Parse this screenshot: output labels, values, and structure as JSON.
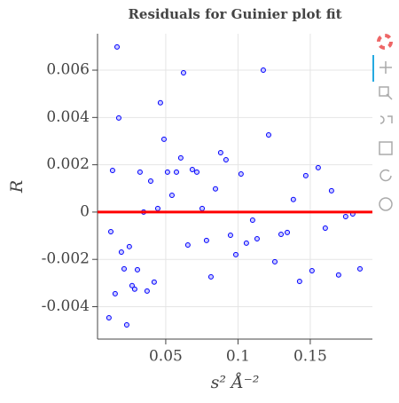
{
  "chart_data": {
    "type": "scatter",
    "title": "Residuals for Guinier plot fit",
    "x_label": "s² Å⁻²",
    "y_label": "R",
    "xlim": [
      0.0028,
      0.193
    ],
    "ylim": [
      -0.00537,
      0.00754
    ],
    "xticks": [
      0.05,
      0.1,
      0.15
    ],
    "yticks": [
      -0.004,
      -0.002,
      0,
      0.002,
      0.004,
      0.006
    ],
    "grid": true,
    "point_color": "#0000ff",
    "reference_line": 0,
    "reference_color": "#ff0000",
    "series": [
      {
        "name": "residuals",
        "x": [
          0.0163,
          0.0175,
          0.0132,
          0.012,
          0.0193,
          0.015,
          0.0107,
          0.0212,
          0.0248,
          0.023,
          0.0267,
          0.0285,
          0.0304,
          0.0322,
          0.0347,
          0.0371,
          0.0396,
          0.042,
          0.0445,
          0.0463,
          0.0488,
          0.0512,
          0.0543,
          0.0574,
          0.0604,
          0.0623,
          0.0653,
          0.0684,
          0.0715,
          0.0752,
          0.0782,
          0.0813,
          0.0844,
          0.088,
          0.0917,
          0.0948,
          0.0985,
          0.1021,
          0.1058,
          0.1101,
          0.1132,
          0.1175,
          0.1212,
          0.1255,
          0.1298,
          0.1341,
          0.1383,
          0.1426,
          0.1469,
          0.1512,
          0.1555,
          0.1604,
          0.1647,
          0.1696,
          0.1745,
          0.1794,
          0.1844
        ],
        "values": [
          0.00698,
          0.00398,
          0.00176,
          -0.00083,
          -0.00169,
          -0.00345,
          -0.00447,
          -0.0024,
          -0.00146,
          -0.00477,
          -0.00311,
          -0.00326,
          -0.00244,
          0.00169,
          0.0,
          -0.00334,
          0.00131,
          -0.00296,
          0.00015,
          0.00462,
          0.00308,
          0.00169,
          0.00071,
          0.00169,
          0.00229,
          0.00589,
          -0.00139,
          0.0018,
          0.00169,
          0.00015,
          -0.0012,
          -0.00274,
          0.00098,
          0.00251,
          0.00221,
          -0.00098,
          -0.0018,
          0.00161,
          -0.00131,
          -0.00034,
          -0.00113,
          0.006,
          0.00326,
          -0.0021,
          -0.00094,
          -0.00086,
          0.00053,
          -0.00293,
          0.00154,
          -0.00248,
          0.00188,
          -0.00068,
          0.0009,
          -0.00266,
          -0.00019,
          -8e-05,
          -0.0024
        ]
      }
    ]
  }
}
